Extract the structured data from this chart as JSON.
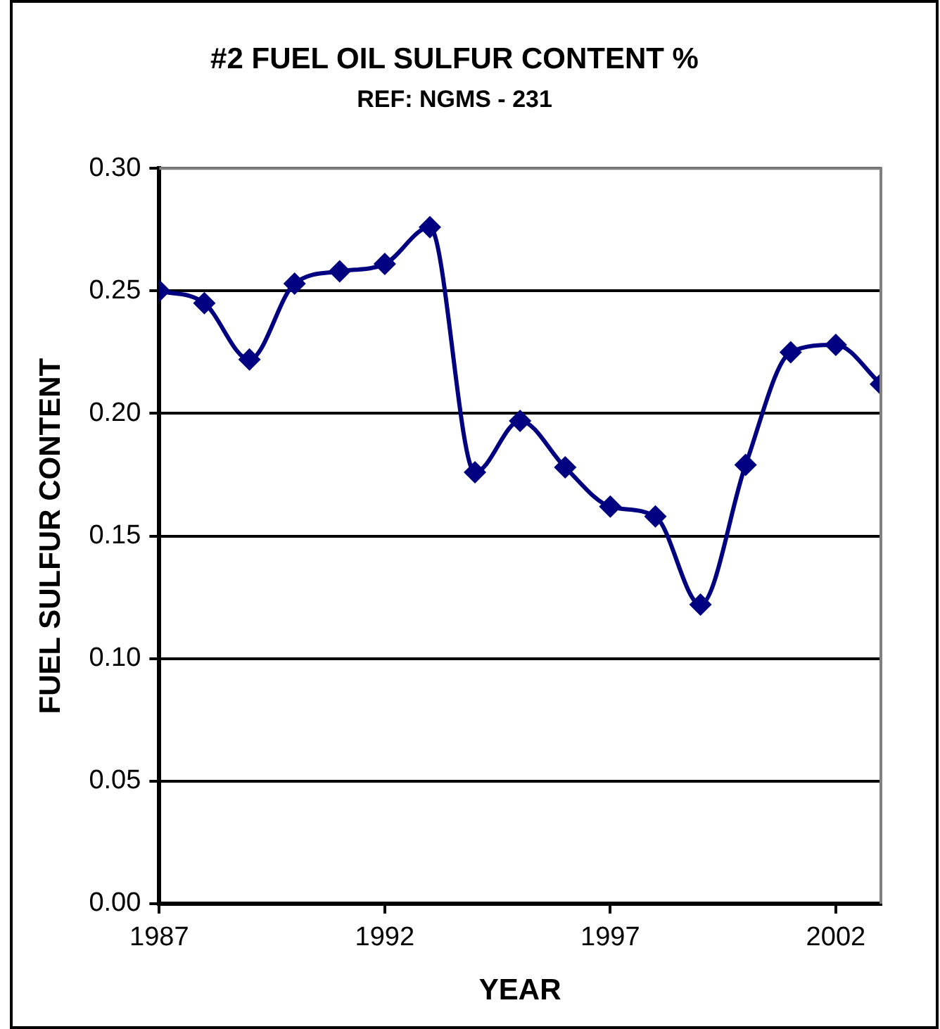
{
  "chart_data": {
    "type": "line",
    "title": "#2 FUEL OIL SULFUR CONTENT %",
    "subtitle": "REF: NGMS - 231",
    "xlabel": "YEAR",
    "ylabel": "FUEL SULFUR CONTENT",
    "x": [
      1987,
      1988,
      1989,
      1990,
      1991,
      1992,
      1993,
      1994,
      1995,
      1996,
      1997,
      1998,
      1999,
      2000,
      2001,
      2002,
      2003
    ],
    "series": [
      {
        "color": "#000080",
        "values": [
          0.25,
          0.245,
          0.222,
          0.253,
          0.258,
          0.261,
          0.276,
          0.176,
          0.197,
          0.178,
          0.162,
          0.158,
          0.122,
          0.179,
          0.225,
          0.228,
          0.212
        ]
      }
    ],
    "xlim": [
      1987,
      2003
    ],
    "xticks": [
      1987,
      1992,
      1997,
      2002
    ],
    "ylim": [
      0,
      0.3
    ],
    "yticks": [
      {
        "value": 0,
        "label": "0.00"
      },
      {
        "value": 0.05,
        "label": "0.05"
      },
      {
        "value": 0.1,
        "label": "0.10"
      },
      {
        "value": 0.15,
        "label": "0.15"
      },
      {
        "value": 0.2,
        "label": "0.20"
      },
      {
        "value": 0.25,
        "label": "0.25"
      },
      {
        "value": 0.3,
        "label": "0.30"
      }
    ],
    "grid": "y",
    "legend": false,
    "marker": "diamond",
    "line_style": "solid"
  }
}
